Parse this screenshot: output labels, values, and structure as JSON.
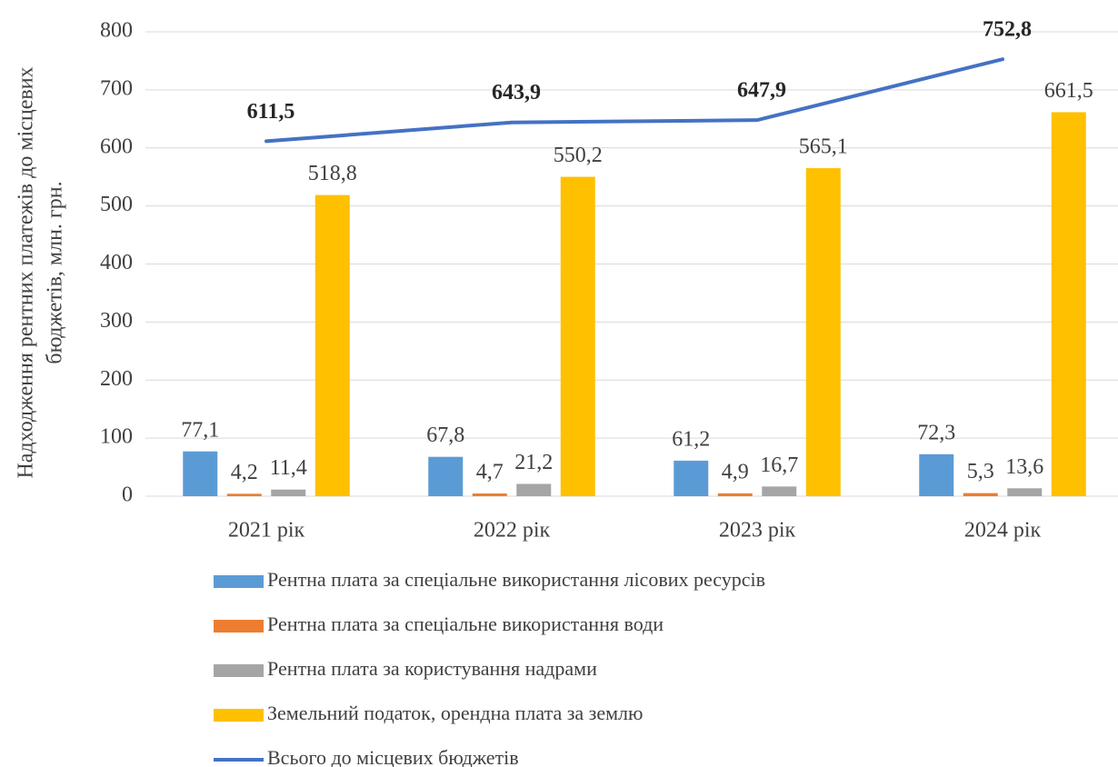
{
  "chart_data": {
    "type": "bar",
    "ylabel": [
      "Надходження рентних платежів до місцевих",
      "бюджетів, млн. грн."
    ],
    "categories": [
      "2021 рік",
      "2022 рік",
      "2023 рік",
      "2024 рік"
    ],
    "series": [
      {
        "name": "Рентна плата за спеціальне використання лісових ресурсів",
        "color": "#5b9bd5",
        "values": [
          77.1,
          67.8,
          61.2,
          72.3
        ],
        "value_labels": [
          "77,1",
          "67,8",
          "61,2",
          "72,3"
        ]
      },
      {
        "name": "Рентна плата за спеціальне використання води",
        "color": "#ed7d31",
        "values": [
          4.2,
          4.7,
          4.9,
          5.3
        ],
        "value_labels": [
          "4,2",
          "4,7",
          "4,9",
          "5,3"
        ]
      },
      {
        "name": "Рентна плата за користування надрами",
        "color": "#a5a5a5",
        "values": [
          11.4,
          21.2,
          16.7,
          13.6
        ],
        "value_labels": [
          "11,4",
          "21,2",
          "16,7",
          "13,6"
        ]
      },
      {
        "name": "Земельний податок, орендна плата за землю",
        "color": "#ffc000",
        "values": [
          518.8,
          550.2,
          565.1,
          661.5
        ],
        "value_labels": [
          "518,8",
          "550,2",
          "565,1",
          "661,5"
        ]
      },
      {
        "name": "Всього до місцевих бюджетів",
        "color": "#4472c4",
        "type": "line",
        "values": [
          611.5,
          643.9,
          647.9,
          752.8
        ],
        "value_labels": [
          "611,5",
          "643,9",
          "647,9",
          "752,8"
        ]
      }
    ],
    "ylim": [
      0,
      800
    ],
    "yticks": [
      0,
      100,
      200,
      300,
      400,
      500,
      600,
      700,
      800
    ],
    "grid": true
  }
}
